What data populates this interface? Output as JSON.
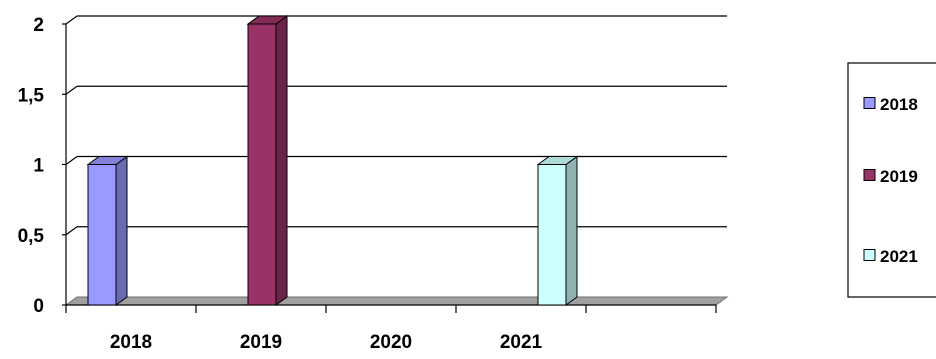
{
  "chart_data": {
    "type": "bar",
    "title": "",
    "xlabel": "",
    "ylabel": "",
    "categories": [
      "2018",
      "2019",
      "2020",
      "2021"
    ],
    "series": [
      {
        "name": "2018",
        "values": [
          1,
          0,
          0,
          0
        ],
        "color": "#9999ff"
      },
      {
        "name": "2019",
        "values": [
          0,
          2,
          0,
          0
        ],
        "color": "#993366"
      },
      {
        "name": "2021",
        "values": [
          0,
          0,
          0,
          1
        ],
        "color": "#ccffff"
      }
    ],
    "ylim": [
      0,
      2
    ],
    "yticks": [
      0,
      0.5,
      1,
      1.5,
      2
    ],
    "ytick_labels": [
      "0",
      "0,5",
      "1",
      "1,5",
      "2"
    ],
    "grid": true,
    "three_d": true,
    "legend_position": "right",
    "colors": {
      "gridline": "#000000",
      "floor": "#a0a0a0",
      "axis": "#000000"
    }
  }
}
